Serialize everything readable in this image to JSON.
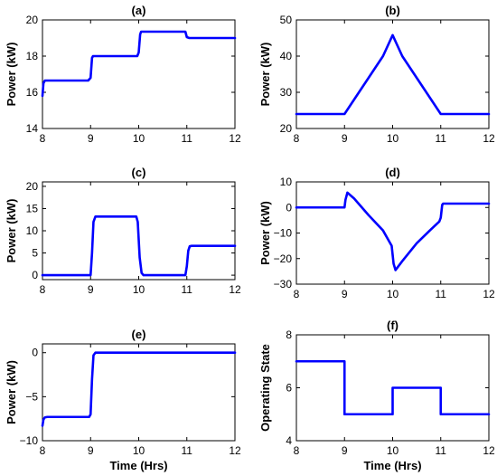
{
  "chart_data": [
    {
      "type": "line",
      "title": "(a)",
      "xlabel": "",
      "ylabel": "Power (kW)",
      "xlim": [
        8,
        12
      ],
      "ylim": [
        14,
        20
      ],
      "xticks": [
        "8",
        "9",
        "10",
        "11",
        "12"
      ],
      "yticks": [
        "14",
        "16",
        "18",
        "20"
      ],
      "grid": false,
      "color": "#0000ff",
      "series": [
        {
          "x": [
            8.0,
            8.02,
            8.05,
            8.1,
            8.95,
            9.0,
            9.03,
            9.05,
            9.2,
            9.97,
            10.0,
            10.03,
            10.05,
            10.2,
            10.97,
            11.0,
            11.05,
            12.0
          ],
          "y": [
            15.8,
            16.5,
            16.65,
            16.65,
            16.65,
            16.8,
            17.9,
            18.0,
            18.0,
            18.0,
            18.2,
            19.2,
            19.35,
            19.35,
            19.35,
            19.05,
            19.0,
            19.0
          ]
        }
      ]
    },
    {
      "type": "line",
      "title": "(b)",
      "xlabel": "",
      "ylabel": "Power (kW)",
      "xlim": [
        8,
        12
      ],
      "ylim": [
        20,
        50
      ],
      "xticks": [
        "8",
        "9",
        "10",
        "11",
        "12"
      ],
      "yticks": [
        "20",
        "30",
        "40",
        "50"
      ],
      "grid": false,
      "color": "#0000ff",
      "series": [
        {
          "x": [
            8.0,
            9.0,
            9.2,
            9.5,
            9.8,
            10.0,
            10.2,
            10.5,
            10.8,
            11.0,
            12.0
          ],
          "y": [
            24,
            24,
            28,
            34,
            40,
            45.8,
            40,
            34,
            28,
            24,
            24
          ]
        }
      ]
    },
    {
      "type": "line",
      "title": "(c)",
      "xlabel": "",
      "ylabel": "Power (kW)",
      "xlim": [
        8,
        12
      ],
      "ylim": [
        -1,
        21
      ],
      "xticks": [
        "8",
        "9",
        "10",
        "11",
        "12"
      ],
      "yticks": [
        "0",
        "5",
        "10",
        "15",
        "20"
      ],
      "grid": false,
      "color": "#0000ff",
      "series": [
        {
          "x": [
            8.0,
            9.0,
            9.03,
            9.06,
            9.1,
            9.95,
            9.98,
            10.02,
            10.06,
            10.1,
            10.97,
            11.0,
            11.03,
            11.06,
            11.1,
            12.0
          ],
          "y": [
            0,
            0,
            5,
            12,
            13.2,
            13.2,
            12,
            4,
            0.5,
            0,
            0,
            2,
            5.5,
            6.5,
            6.6,
            6.6
          ]
        }
      ]
    },
    {
      "type": "line",
      "title": "(d)",
      "xlabel": "",
      "ylabel": "Power (kW)",
      "xlim": [
        8,
        12
      ],
      "ylim": [
        -30,
        10
      ],
      "xticks": [
        "8",
        "9",
        "10",
        "11",
        "12"
      ],
      "yticks": [
        "-30",
        "-20",
        "-10",
        "0",
        "10"
      ],
      "grid": false,
      "color": "#0000ff",
      "series": [
        {
          "x": [
            8.0,
            9.0,
            9.02,
            9.06,
            9.2,
            9.5,
            9.8,
            9.98,
            10.02,
            10.06,
            10.2,
            10.5,
            10.8,
            10.97,
            11.0,
            11.03,
            11.05,
            12.0
          ],
          "y": [
            0,
            0,
            3,
            5.8,
            3.5,
            -3,
            -9,
            -15,
            -22,
            -24.5,
            -21,
            -14,
            -8.5,
            -5.5,
            -4,
            1,
            1.5,
            1.5
          ]
        }
      ]
    },
    {
      "type": "line",
      "title": "(e)",
      "xlabel": "Time (Hrs)",
      "ylabel": "Power (kW)",
      "xlim": [
        8,
        12
      ],
      "ylim": [
        -10,
        1
      ],
      "xticks": [
        "8",
        "9",
        "10",
        "11",
        "12"
      ],
      "yticks": [
        "-10",
        "-5",
        "0"
      ],
      "grid": false,
      "color": "#0000ff",
      "series": [
        {
          "x": [
            8.0,
            8.02,
            8.05,
            8.1,
            8.97,
            9.0,
            9.03,
            9.06,
            9.1,
            12.0
          ],
          "y": [
            -8.3,
            -7.6,
            -7.35,
            -7.3,
            -7.3,
            -7.0,
            -3.0,
            -0.3,
            0,
            0
          ]
        }
      ]
    },
    {
      "type": "line",
      "title": "(f)",
      "xlabel": "Time (Hrs)",
      "ylabel": "Operating State",
      "xlim": [
        8,
        12
      ],
      "ylim": [
        4,
        8
      ],
      "xticks": [
        "8",
        "9",
        "10",
        "11",
        "12"
      ],
      "yticks": [
        "4",
        "6",
        "8"
      ],
      "grid": false,
      "color": "#0000ff",
      "series": [
        {
          "x": [
            8.0,
            9.0,
            9.0,
            10.0,
            10.0,
            11.0,
            11.0,
            12.0
          ],
          "y": [
            7,
            7,
            5,
            5,
            6,
            6,
            5,
            5
          ]
        }
      ]
    }
  ]
}
